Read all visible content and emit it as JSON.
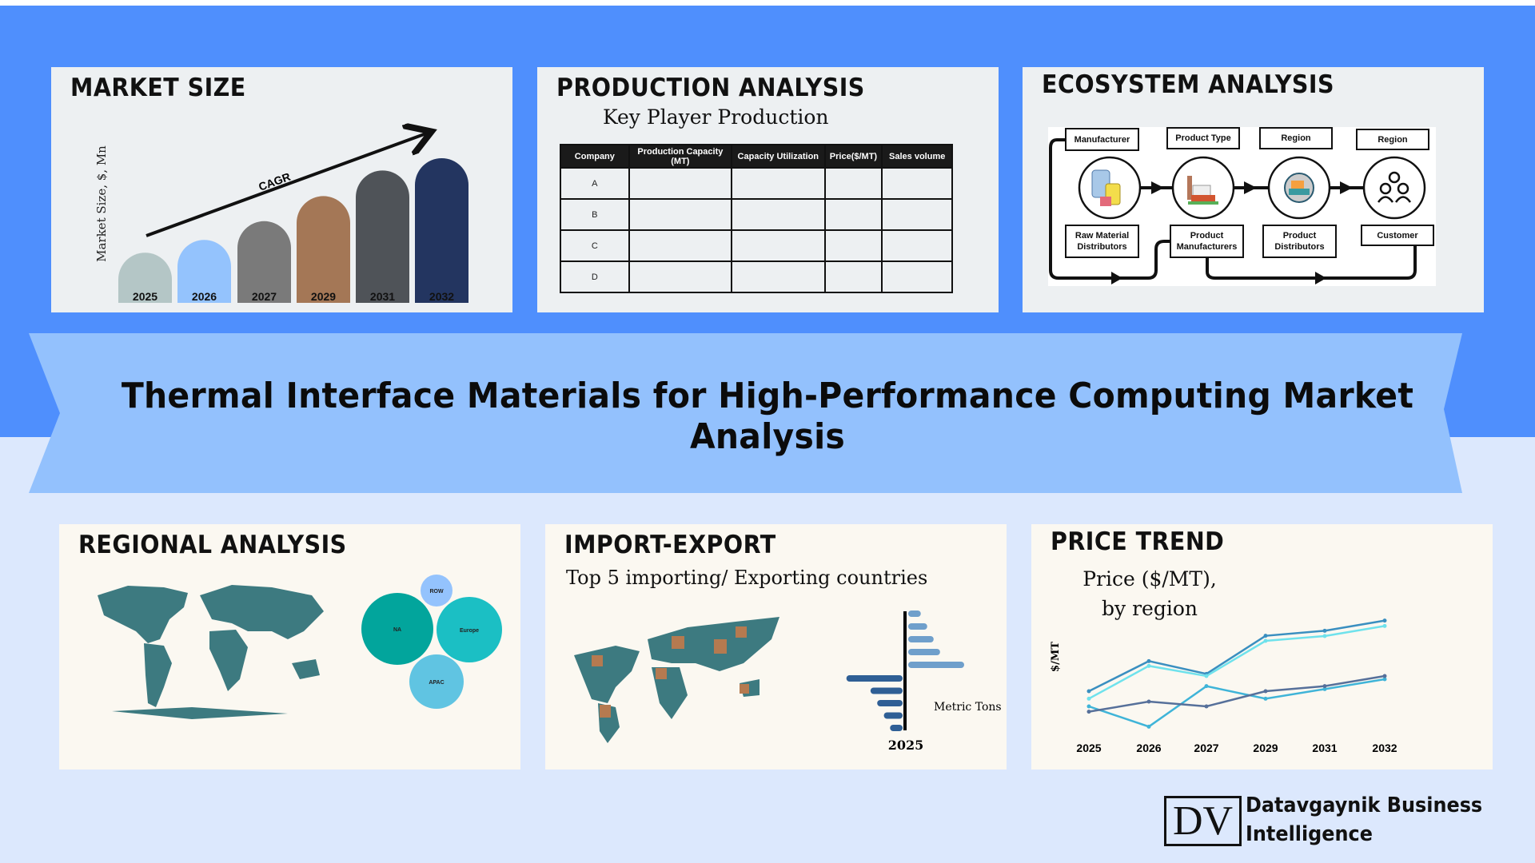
{
  "main_title": "Thermal Interface Materials for High-Performance Computing Market Analysis",
  "colors": {
    "top_band": "#4f8ffd",
    "banner": "#93c1fd",
    "background": "#dce8fd",
    "top_panel": "#edf0f2",
    "bottom_panel": "#fbf8f1"
  },
  "market_size": {
    "title": "MARKET SIZE",
    "chart_data": {
      "type": "bar",
      "ylabel": "Market Size, $, Mn",
      "annotation": "CAGR",
      "categories": [
        "2025",
        "2026",
        "2027",
        "2029",
        "2031",
        "2032"
      ],
      "values": [
        188,
        236,
        306,
        400,
        496,
        542
      ],
      "colors": [
        "#b4c6c6",
        "#94c3fd",
        "#7a7a7a",
        "#a47756",
        "#4f5358",
        "#233560"
      ]
    }
  },
  "production": {
    "title": "PRODUCTION ANALYSIS",
    "subtitle": "Key Player Production",
    "columns": [
      "Company",
      "Production Capacity (MT)",
      "Capacity Utilization",
      "Price($/MT)",
      "Sales volume"
    ],
    "rows": [
      [
        "A",
        "",
        "",
        "",
        ""
      ],
      [
        "B",
        "",
        "",
        "",
        ""
      ],
      [
        "C",
        "",
        "",
        "",
        ""
      ],
      [
        "D",
        "",
        "",
        "",
        ""
      ]
    ]
  },
  "ecosystem": {
    "title": "ECOSYSTEM ANALYSIS",
    "top_labels": [
      "Manufacturer",
      "Product Type",
      "Region",
      "Region"
    ],
    "bottom_labels": [
      "Raw Material Distributors",
      "Product Manufacturers",
      "Product Distributors",
      "Customer"
    ],
    "icons": [
      "barrels-icon",
      "factory-icon",
      "distribution-truck-icon",
      "customers-icon"
    ]
  },
  "regional": {
    "title": "REGIONAL ANALYSIS",
    "bubbles": [
      {
        "label": "ROW",
        "color": "#94c3fd"
      },
      {
        "label": "NA",
        "color": "#02a59c"
      },
      {
        "label": "Europe",
        "color": "#1bbfc4"
      },
      {
        "label": "APAC",
        "color": "#60c4e2"
      }
    ]
  },
  "import_export": {
    "title": "IMPORT-EXPORT",
    "subtitle": "Top 5 importing/ Exporting countries",
    "chart_data": {
      "type": "bar",
      "orientation": "horizontal-diverging",
      "unit_label": "Metric Tons",
      "xlabel": "2025",
      "series": [
        {
          "values": [
            47,
            71,
            95,
            119,
            209
          ],
          "color": "#6f9fcb"
        },
        {
          "values": [
            210,
            120,
            95,
            70,
            47
          ],
          "color": "#2f5f95"
        }
      ]
    }
  },
  "price_trend": {
    "title": "PRICE TREND",
    "chart_data": {
      "type": "line",
      "title": "Price ($/MT), by region",
      "ylabel": "$/MT",
      "categories": [
        "2025",
        "2026",
        "2027",
        "2029",
        "2031",
        "2032"
      ],
      "series": [
        {
          "values": [
            205,
            318,
            270,
            413,
            432,
            470
          ],
          "color": "#3a8fc0"
        },
        {
          "values": [
            177,
            300,
            262,
            394,
            412,
            450
          ],
          "color": "#6fe2ec"
        },
        {
          "values": [
            148,
            72,
            224,
            177,
            213,
            250
          ],
          "color": "#3fb4d8"
        },
        {
          "values": [
            128,
            166,
            148,
            205,
            224,
            262
          ],
          "color": "#56709a"
        }
      ]
    }
  },
  "logo": {
    "mark": "DV",
    "line1": "Datavgaynik Business",
    "line2": "Intelligence"
  }
}
